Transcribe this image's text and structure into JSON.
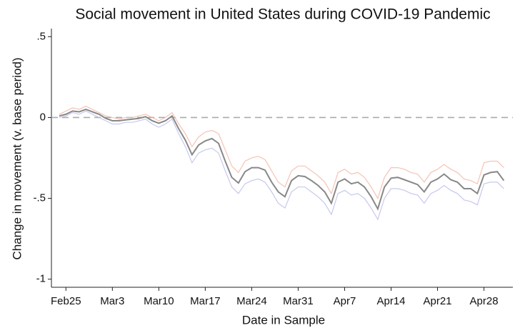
{
  "chart_data": {
    "type": "line",
    "title": "Social movement in United States during COVID-19 Pandemic",
    "x_label": "Date in Sample",
    "y_label": "Change in movement (v. base period)",
    "categories": [
      null,
      "Feb25",
      null,
      null,
      null,
      null,
      null,
      null,
      "Mar3",
      null,
      null,
      null,
      null,
      null,
      null,
      "Mar10",
      null,
      null,
      null,
      null,
      null,
      null,
      "Mar17",
      null,
      null,
      null,
      null,
      null,
      null,
      "Mar24",
      null,
      null,
      null,
      null,
      null,
      null,
      "Mar31",
      null,
      null,
      null,
      null,
      null,
      null,
      "Apr7",
      null,
      null,
      null,
      null,
      null,
      null,
      "Apr14",
      null,
      null,
      null,
      null,
      null,
      null,
      "Apr21",
      null,
      null,
      null,
      null,
      null,
      null,
      "Apr28",
      null,
      null,
      null
    ],
    "ylim": [
      -1.05,
      0.55
    ],
    "yticks": [
      {
        "value": 0.5,
        "label": ".5"
      },
      0,
      {
        "value": -0.5,
        "label": "-.5"
      },
      -1
    ],
    "hline": 0,
    "series": [
      {
        "color": "#f2b4a2",
        "values": [
          0.02,
          0.04,
          0.06,
          0.05,
          0.07,
          0.05,
          0.03,
          0.01,
          0,
          -0.01,
          0,
          0,
          0.01,
          0.02,
          0,
          -0.02,
          0,
          0.03,
          -0.04,
          -0.1,
          -0.18,
          -0.12,
          -0.09,
          -0.08,
          -0.1,
          -0.2,
          -0.3,
          -0.34,
          -0.27,
          -0.25,
          -0.24,
          -0.26,
          -0.33,
          -0.4,
          -0.43,
          -0.33,
          -0.3,
          -0.3,
          -0.33,
          -0.36,
          -0.4,
          -0.47,
          -0.34,
          -0.32,
          -0.35,
          -0.34,
          -0.37,
          -0.43,
          -0.5,
          -0.37,
          -0.31,
          -0.31,
          -0.32,
          -0.34,
          -0.35,
          -0.4,
          -0.34,
          -0.32,
          -0.29,
          -0.32,
          -0.34,
          -0.38,
          -0.39,
          -0.41,
          -0.28,
          -0.27,
          -0.27,
          -0.31
        ]
      },
      {
        "color": "#b6bce8",
        "values": [
          0,
          0.01,
          0.03,
          0.02,
          0.04,
          0.02,
          0,
          -0.02,
          -0.04,
          -0.04,
          -0.03,
          -0.03,
          -0.02,
          -0.01,
          -0.04,
          -0.06,
          -0.04,
          -0.01,
          -0.1,
          -0.18,
          -0.28,
          -0.22,
          -0.2,
          -0.19,
          -0.22,
          -0.33,
          -0.43,
          -0.47,
          -0.41,
          -0.39,
          -0.38,
          -0.4,
          -0.46,
          -0.53,
          -0.56,
          -0.46,
          -0.43,
          -0.43,
          -0.46,
          -0.49,
          -0.53,
          -0.6,
          -0.47,
          -0.45,
          -0.48,
          -0.47,
          -0.5,
          -0.56,
          -0.63,
          -0.5,
          -0.44,
          -0.44,
          -0.45,
          -0.47,
          -0.48,
          -0.53,
          -0.47,
          -0.45,
          -0.42,
          -0.45,
          -0.47,
          -0.51,
          -0.52,
          -0.54,
          -0.41,
          -0.4,
          -0.4,
          -0.44
        ]
      },
      {
        "color": "#888888",
        "values": [
          0.01,
          0.02,
          0.04,
          0.035,
          0.05,
          0.035,
          0.02,
          -0.005,
          -0.02,
          -0.02,
          -0.015,
          -0.01,
          -0.005,
          0.005,
          -0.02,
          -0.035,
          -0.02,
          0.01,
          -0.07,
          -0.14,
          -0.23,
          -0.17,
          -0.145,
          -0.13,
          -0.16,
          -0.27,
          -0.37,
          -0.405,
          -0.335,
          -0.31,
          -0.31,
          -0.325,
          -0.4,
          -0.46,
          -0.49,
          -0.39,
          -0.36,
          -0.365,
          -0.39,
          -0.42,
          -0.46,
          -0.53,
          -0.4,
          -0.38,
          -0.41,
          -0.4,
          -0.43,
          -0.49,
          -0.565,
          -0.43,
          -0.375,
          -0.37,
          -0.385,
          -0.4,
          -0.415,
          -0.46,
          -0.4,
          -0.38,
          -0.35,
          -0.385,
          -0.4,
          -0.44,
          -0.44,
          -0.47,
          -0.355,
          -0.34,
          -0.335,
          -0.39
        ]
      }
    ]
  }
}
